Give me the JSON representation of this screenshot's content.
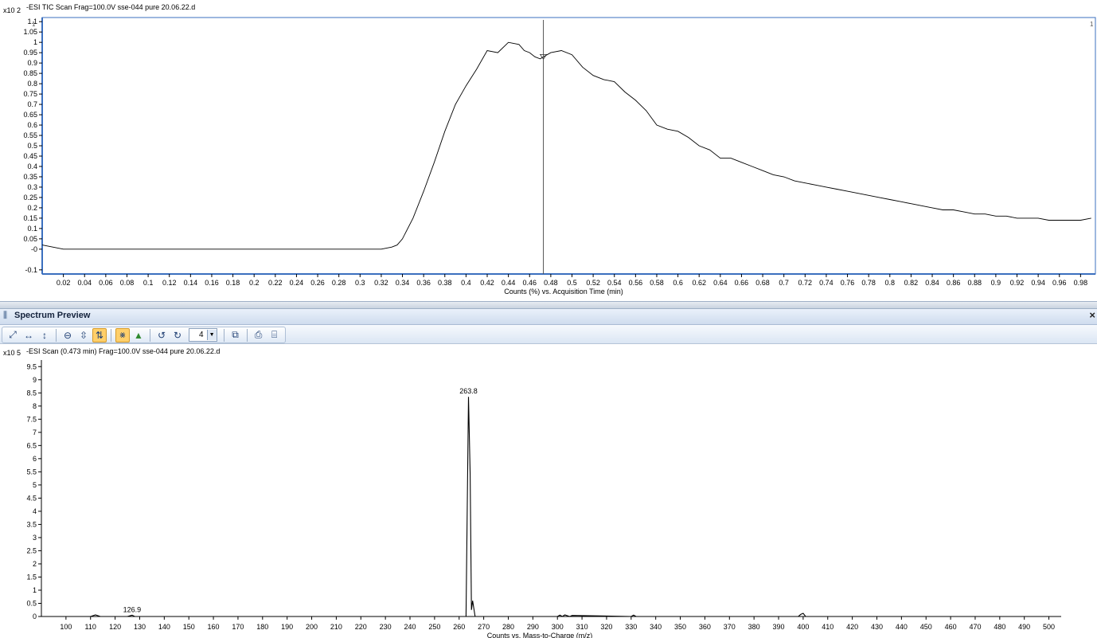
{
  "tic": {
    "scale_label": "x10 2",
    "title": "-ESI TIC Scan Frag=100.0V sse-044 pure 20.06.22.d",
    "marker_left": "1",
    "marker_right": "1",
    "xlabel": "Counts (%) vs. Acquisition Time (min)",
    "y_ticks": [
      "-0.1",
      "-0",
      "0.05",
      "0.1",
      "0.15",
      "0.2",
      "0.25",
      "0.3",
      "0.35",
      "0.4",
      "0.45",
      "0.5",
      "0.55",
      "0.6",
      "0.65",
      "0.7",
      "0.75",
      "0.8",
      "0.85",
      "0.9",
      "0.95",
      "1",
      "1.05",
      "1.1"
    ],
    "x_ticks": [
      "0.02",
      "0.04",
      "0.06",
      "0.08",
      "0.1",
      "0.12",
      "0.14",
      "0.16",
      "0.18",
      "0.2",
      "0.22",
      "0.24",
      "0.26",
      "0.28",
      "0.3",
      "0.32",
      "0.34",
      "0.36",
      "0.38",
      "0.4",
      "0.42",
      "0.44",
      "0.46",
      "0.48",
      "0.5",
      "0.52",
      "0.54",
      "0.56",
      "0.58",
      "0.6",
      "0.62",
      "0.64",
      "0.66",
      "0.68",
      "0.7",
      "0.72",
      "0.74",
      "0.76",
      "0.78",
      "0.8",
      "0.82",
      "0.84",
      "0.86",
      "0.88",
      "0.9",
      "0.92",
      "0.94",
      "0.96",
      "0.98"
    ],
    "cursor_time": 0.473
  },
  "spectrum_preview": {
    "title": "Spectrum Preview",
    "close_icon": "close-icon",
    "zoom_value": "4",
    "toolbar_icons": [
      "autoscale-xy-icon",
      "autoscale-x-icon",
      "autoscale-y-icon",
      "zoom-out-icon",
      "fit-y-icon",
      "overlay-icon",
      "peak-label-icon",
      "peak-find-icon",
      "undo-icon",
      "redo-icon",
      "zoom-dropdown",
      "copy-icon",
      "print-preview-icon",
      "print-icon"
    ]
  },
  "spectrum": {
    "scale_label": "x10 5",
    "title": "-ESI Scan (0.473 min) Frag=100.0V sse-044 pure 20.06.22.d",
    "xlabel": "Counts vs. Mass-to-Charge (m/z)",
    "y_ticks": [
      "0",
      "0.5",
      "1",
      "1.5",
      "2",
      "2.5",
      "3",
      "3.5",
      "4",
      "4.5",
      "5",
      "5.5",
      "6",
      "6.5",
      "7",
      "7.5",
      "8",
      "8.5",
      "9",
      "9.5"
    ],
    "x_ticks": [
      "100",
      "110",
      "120",
      "130",
      "140",
      "150",
      "160",
      "170",
      "180",
      "190",
      "200",
      "210",
      "220",
      "230",
      "240",
      "250",
      "260",
      "270",
      "280",
      "290",
      "300",
      "310",
      "320",
      "330",
      "340",
      "350",
      "360",
      "370",
      "380",
      "390",
      "400",
      "410",
      "420",
      "430",
      "440",
      "450",
      "460",
      "470",
      "480",
      "490",
      "500"
    ],
    "peak_labels": [
      {
        "text": "263.8",
        "mz": 263.8,
        "intensity": 8.35
      },
      {
        "text": "126.9",
        "mz": 126.9,
        "intensity": 0.05
      }
    ]
  },
  "chart_data": [
    {
      "type": "line",
      "title": "-ESI TIC Scan Frag=100.0V sse-044 pure 20.06.22.d",
      "xlabel": "Counts (%) vs. Acquisition Time (min)",
      "ylabel": "x10 2",
      "xlim": [
        0.0,
        0.994
      ],
      "ylim": [
        -0.12,
        1.12
      ],
      "grid": false,
      "series": [
        {
          "x": [
            0.0,
            0.02,
            0.04,
            0.06,
            0.08,
            0.1,
            0.12,
            0.14,
            0.16,
            0.18,
            0.2,
            0.22,
            0.24,
            0.26,
            0.28,
            0.3,
            0.32,
            0.33,
            0.335,
            0.34,
            0.35,
            0.36,
            0.37,
            0.38,
            0.39,
            0.4,
            0.41,
            0.42,
            0.43,
            0.44,
            0.45,
            0.455,
            0.46,
            0.465,
            0.47,
            0.473,
            0.48,
            0.49,
            0.5,
            0.51,
            0.52,
            0.53,
            0.54,
            0.55,
            0.56,
            0.57,
            0.58,
            0.59,
            0.6,
            0.61,
            0.62,
            0.63,
            0.64,
            0.65,
            0.66,
            0.67,
            0.68,
            0.69,
            0.7,
            0.71,
            0.72,
            0.73,
            0.74,
            0.75,
            0.76,
            0.77,
            0.78,
            0.79,
            0.8,
            0.81,
            0.82,
            0.83,
            0.84,
            0.85,
            0.86,
            0.87,
            0.88,
            0.89,
            0.9,
            0.91,
            0.92,
            0.93,
            0.94,
            0.95,
            0.96,
            0.97,
            0.98,
            0.99
          ],
          "y": [
            0.02,
            0.0,
            0.0,
            0.0,
            0.0,
            0.0,
            0.0,
            0.0,
            0.0,
            0.0,
            0.0,
            0.0,
            0.0,
            0.0,
            0.0,
            0.0,
            0.0,
            0.01,
            0.02,
            0.05,
            0.15,
            0.28,
            0.42,
            0.57,
            0.7,
            0.79,
            0.87,
            0.96,
            0.95,
            1.0,
            0.99,
            0.96,
            0.95,
            0.93,
            0.92,
            0.93,
            0.95,
            0.96,
            0.94,
            0.88,
            0.84,
            0.82,
            0.81,
            0.76,
            0.72,
            0.67,
            0.6,
            0.58,
            0.57,
            0.54,
            0.5,
            0.48,
            0.44,
            0.44,
            0.42,
            0.4,
            0.38,
            0.36,
            0.35,
            0.33,
            0.32,
            0.31,
            0.3,
            0.29,
            0.28,
            0.27,
            0.26,
            0.25,
            0.24,
            0.23,
            0.22,
            0.21,
            0.2,
            0.19,
            0.19,
            0.18,
            0.17,
            0.17,
            0.16,
            0.16,
            0.15,
            0.15,
            0.15,
            0.14,
            0.14,
            0.14,
            0.14,
            0.15
          ]
        }
      ]
    },
    {
      "type": "line",
      "title": "-ESI Scan (0.473 min) Frag=100.0V sse-044 pure 20.06.22.d",
      "xlabel": "Counts vs. Mass-to-Charge (m/z)",
      "ylabel": "x10 5",
      "xlim": [
        90,
        505
      ],
      "ylim": [
        0,
        9.75
      ],
      "grid": false,
      "series": [
        {
          "x": [
            90,
            110,
            112,
            114,
            125,
            126.9,
            128,
            262.8,
            263.8,
            264.5,
            265.0,
            265.5,
            266.5,
            300,
            301,
            302,
            303,
            305,
            306,
            330,
            331,
            332,
            398,
            399,
            400,
            401,
            505
          ],
          "y": [
            0,
            0,
            0.06,
            0,
            0,
            0.05,
            0,
            0,
            8.35,
            5.4,
            0.25,
            0.6,
            0,
            0,
            0.05,
            0,
            0.06,
            0,
            0.04,
            0,
            0.05,
            0,
            0,
            0.08,
            0.12,
            0,
            0
          ]
        }
      ],
      "annotations": [
        {
          "text": "263.8",
          "x": 263.8,
          "y": 8.35
        },
        {
          "text": "126.9",
          "x": 126.9,
          "y": 0.05
        }
      ]
    }
  ]
}
